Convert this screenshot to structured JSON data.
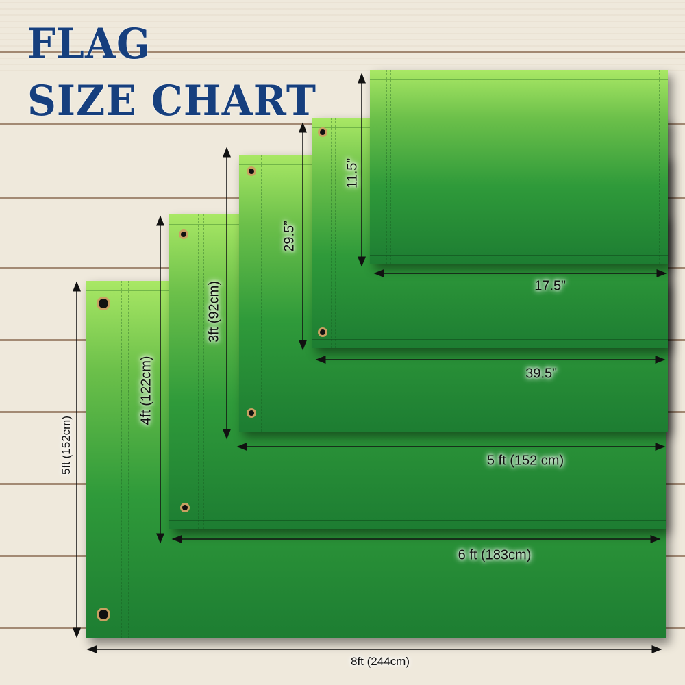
{
  "title": {
    "line1": "FLAG",
    "line2": "SIZE CHART"
  },
  "colors": {
    "title": "#163f7e",
    "flag_top": "#a9e865",
    "flag_bottom": "#1d7d32",
    "grommet_ring": "#c9a062",
    "background": "#efe9dc"
  },
  "flags": [
    {
      "width_label": "8ft (244cm)",
      "height_label": "5ft (152cm)"
    },
    {
      "width_label": "6 ft (183cm)",
      "height_label": "4ft (122cm)"
    },
    {
      "width_label": "5 ft (152 cm)",
      "height_label": "3ft (92cm)"
    },
    {
      "width_label": "39.5”",
      "height_label": "29.5”"
    },
    {
      "width_label": "17.5”",
      "height_label": "11.5”"
    }
  ]
}
